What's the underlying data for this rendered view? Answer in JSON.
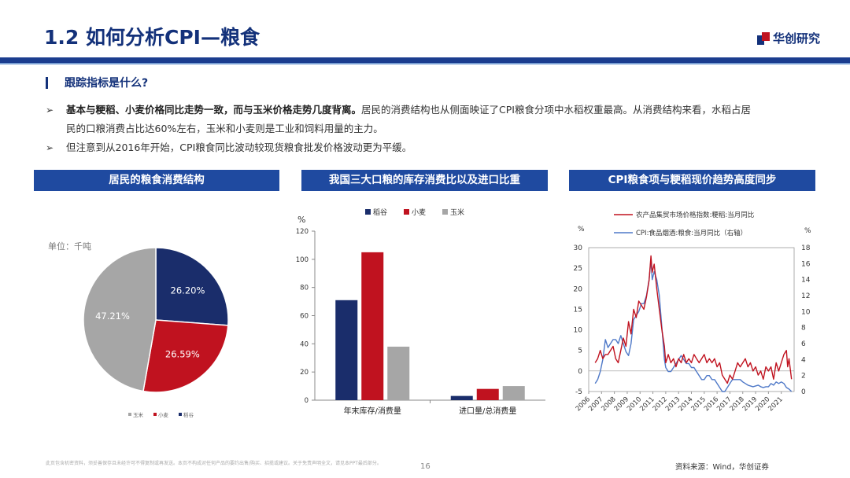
{
  "header": {
    "title": "1.2 如何分析CPI—粮食",
    "logo_text": "华创研究"
  },
  "section": {
    "subheading": "跟踪指标是什么?",
    "bullets": [
      {
        "bold": "基本与粳稻、小麦价格同比走势一致，而与玉米价格走势几度背离。",
        "line1_rest": "居民的消费结构也从侧面映证了CPI粮食分项中水稻权重最高。从消费结构来看，水稻占居",
        "line2": "民的口粮消费占比达60%左右，玉米和小麦则是工业和饲料用量的主力。"
      },
      {
        "text": "但注意到从2016年开始，CPI粮食同比波动较现货粮食批发价格波动更为平缓。"
      }
    ]
  },
  "panels": {
    "pie_header": "居民的粮食消费结构",
    "bar_header": "我国三大口粮的库存消费比以及进口比重",
    "line_header": "CPI粮食项与粳稻现价趋势高度同步"
  },
  "chart_data": [
    {
      "type": "pie",
      "unit_note": "单位：千吨",
      "slices": [
        {
          "name": "稻谷",
          "value": 26.2,
          "label": "26.20%",
          "color": "#1a2d6b"
        },
        {
          "name": "小麦",
          "value": 26.59,
          "label": "26.59%",
          "color": "#c0121f"
        },
        {
          "name": "玉米",
          "value": 47.21,
          "label": "47.21%",
          "color": "#a6a6a6"
        }
      ],
      "legend": [
        "玉米",
        "小麦",
        "稻谷"
      ]
    },
    {
      "type": "bar",
      "ylabel": "%",
      "ylim": [
        0,
        120
      ],
      "yticks": [
        0,
        20,
        40,
        60,
        80,
        100,
        120
      ],
      "categories": [
        "年末库存/消费量",
        "进口量/总消费量"
      ],
      "series": [
        {
          "name": "稻谷",
          "color": "#1a2d6b",
          "values": [
            71,
            3
          ]
        },
        {
          "name": "小麦",
          "color": "#c0121f",
          "values": [
            105,
            8
          ]
        },
        {
          "name": "玉米",
          "color": "#a6a6a6",
          "values": [
            38,
            10
          ]
        }
      ]
    },
    {
      "type": "line",
      "left_unit": "%",
      "right_unit": "%",
      "left_ylim": [
        -5,
        30
      ],
      "left_yticks": [
        -5,
        0,
        5,
        10,
        15,
        20,
        25,
        30
      ],
      "right_ylim": [
        0,
        18
      ],
      "right_yticks": [
        0,
        2,
        4,
        6,
        8,
        10,
        12,
        14,
        16,
        18
      ],
      "x_years": [
        "2006",
        "2007",
        "2008",
        "2009",
        "2010",
        "2011",
        "2012",
        "2013",
        "2014",
        "2015",
        "2016",
        "2017",
        "2018",
        "2019",
        "2020",
        "2021"
      ],
      "series": [
        {
          "name": "农产品集贸市场价格指数:粳稻:当月同比",
          "axis": "left",
          "color": "#c0121f",
          "points": [
            [
              2006.5,
              2
            ],
            [
              2006.7,
              3
            ],
            [
              2006.9,
              5
            ],
            [
              2007.1,
              3
            ],
            [
              2007.3,
              4
            ],
            [
              2007.5,
              4
            ],
            [
              2007.7,
              5
            ],
            [
              2007.9,
              6
            ],
            [
              2008.1,
              3
            ],
            [
              2008.3,
              2
            ],
            [
              2008.5,
              5
            ],
            [
              2008.7,
              8
            ],
            [
              2008.9,
              6
            ],
            [
              2009.1,
              12
            ],
            [
              2009.3,
              9
            ],
            [
              2009.5,
              15
            ],
            [
              2009.7,
              13
            ],
            [
              2009.9,
              17
            ],
            [
              2010.1,
              16
            ],
            [
              2010.3,
              15
            ],
            [
              2010.5,
              18
            ],
            [
              2010.7,
              22
            ],
            [
              2010.85,
              28
            ],
            [
              2010.95,
              24
            ],
            [
              2011.1,
              26
            ],
            [
              2011.3,
              20
            ],
            [
              2011.5,
              15
            ],
            [
              2011.7,
              10
            ],
            [
              2011.9,
              6
            ],
            [
              2012.0,
              2
            ],
            [
              2012.2,
              4
            ],
            [
              2012.4,
              2
            ],
            [
              2012.6,
              3
            ],
            [
              2012.8,
              1
            ],
            [
              2013.0,
              3
            ],
            [
              2013.2,
              2
            ],
            [
              2013.4,
              4
            ],
            [
              2013.6,
              2
            ],
            [
              2013.8,
              3
            ],
            [
              2014.0,
              2
            ],
            [
              2014.2,
              4
            ],
            [
              2014.4,
              3
            ],
            [
              2014.6,
              2
            ],
            [
              2014.8,
              3
            ],
            [
              2015.0,
              4
            ],
            [
              2015.2,
              2
            ],
            [
              2015.4,
              3
            ],
            [
              2015.6,
              2
            ],
            [
              2015.8,
              3
            ],
            [
              2016.0,
              1
            ],
            [
              2016.2,
              2
            ],
            [
              2016.4,
              -1
            ],
            [
              2016.6,
              -2
            ],
            [
              2016.8,
              -3
            ],
            [
              2017.0,
              -1
            ],
            [
              2017.2,
              -2
            ],
            [
              2017.4,
              0
            ],
            [
              2017.6,
              2
            ],
            [
              2017.8,
              1
            ],
            [
              2018.0,
              2
            ],
            [
              2018.2,
              3
            ],
            [
              2018.4,
              1
            ],
            [
              2018.6,
              2
            ],
            [
              2018.8,
              0
            ],
            [
              2019.0,
              1
            ],
            [
              2019.2,
              -1
            ],
            [
              2019.4,
              0
            ],
            [
              2019.6,
              -2
            ],
            [
              2019.8,
              1
            ],
            [
              2020.0,
              0
            ],
            [
              2020.2,
              1
            ],
            [
              2020.4,
              -2
            ],
            [
              2020.6,
              2
            ],
            [
              2020.8,
              0
            ],
            [
              2021.0,
              2
            ],
            [
              2021.2,
              4
            ],
            [
              2021.4,
              5
            ],
            [
              2021.5,
              1
            ],
            [
              2021.6,
              3
            ],
            [
              2021.8,
              -2
            ]
          ]
        },
        {
          "name": "CPI:食品烟酒:粮食:当月同比（右轴）",
          "axis": "right",
          "color": "#4f79c8",
          "points": [
            [
              2006.5,
              1
            ],
            [
              2006.7,
              1.5
            ],
            [
              2006.9,
              2.5
            ],
            [
              2007.1,
              4
            ],
            [
              2007.3,
              6.5
            ],
            [
              2007.5,
              5.5
            ],
            [
              2007.7,
              6
            ],
            [
              2007.9,
              6.5
            ],
            [
              2008.1,
              6.5
            ],
            [
              2008.3,
              6
            ],
            [
              2008.5,
              7
            ],
            [
              2008.7,
              6
            ],
            [
              2008.9,
              5
            ],
            [
              2009.1,
              4.5
            ],
            [
              2009.3,
              6
            ],
            [
              2009.5,
              9
            ],
            [
              2009.7,
              9.5
            ],
            [
              2009.9,
              10
            ],
            [
              2010.1,
              11
            ],
            [
              2010.3,
              11
            ],
            [
              2010.5,
              12
            ],
            [
              2010.7,
              14
            ],
            [
              2010.85,
              16.5
            ],
            [
              2010.95,
              14
            ],
            [
              2011.1,
              15
            ],
            [
              2011.3,
              14
            ],
            [
              2011.5,
              12
            ],
            [
              2011.7,
              8
            ],
            [
              2011.9,
              4
            ],
            [
              2012.0,
              3
            ],
            [
              2012.2,
              2.5
            ],
            [
              2012.4,
              2.5
            ],
            [
              2012.6,
              3
            ],
            [
              2012.8,
              3.5
            ],
            [
              2013.0,
              4
            ],
            [
              2013.2,
              4.5
            ],
            [
              2013.4,
              4
            ],
            [
              2013.6,
              3.5
            ],
            [
              2013.8,
              3.5
            ],
            [
              2014.0,
              3
            ],
            [
              2014.2,
              3
            ],
            [
              2014.4,
              2.5
            ],
            [
              2014.6,
              2
            ],
            [
              2014.8,
              1.5
            ],
            [
              2015.0,
              1.5
            ],
            [
              2015.2,
              2
            ],
            [
              2015.4,
              2
            ],
            [
              2015.6,
              1.5
            ],
            [
              2015.8,
              1.5
            ],
            [
              2016.0,
              1
            ],
            [
              2016.2,
              0.5
            ],
            [
              2016.4,
              0
            ],
            [
              2016.6,
              0
            ],
            [
              2016.8,
              0.5
            ],
            [
              2017.0,
              1
            ],
            [
              2017.2,
              1.5
            ],
            [
              2017.4,
              1.5
            ],
            [
              2017.6,
              1.5
            ],
            [
              2017.8,
              1.5
            ],
            [
              2018.0,
              1.2
            ],
            [
              2018.2,
              1
            ],
            [
              2018.4,
              0.8
            ],
            [
              2018.6,
              0.7
            ],
            [
              2018.8,
              0.6
            ],
            [
              2019.0,
              0.7
            ],
            [
              2019.2,
              0.8
            ],
            [
              2019.4,
              0.6
            ],
            [
              2019.6,
              0.5
            ],
            [
              2019.8,
              0.6
            ],
            [
              2020.0,
              0.6
            ],
            [
              2020.2,
              1
            ],
            [
              2020.4,
              0.8
            ],
            [
              2020.6,
              1.2
            ],
            [
              2020.8,
              1
            ],
            [
              2021.0,
              1.2
            ],
            [
              2021.2,
              1
            ],
            [
              2021.4,
              0.5
            ],
            [
              2021.6,
              0.3
            ],
            [
              2021.8,
              0
            ]
          ]
        }
      ]
    }
  ],
  "footer": {
    "disclaimer": "此页包含机密资料，须妥善保存且未经许可不得复制或再发送。本页不构成对任何产品的要约出售/购买、招揽或建议。关于免责声明全文，请见本PPT最后部分。",
    "page_number": "16",
    "source": "资料来源：Wind，华创证券"
  }
}
